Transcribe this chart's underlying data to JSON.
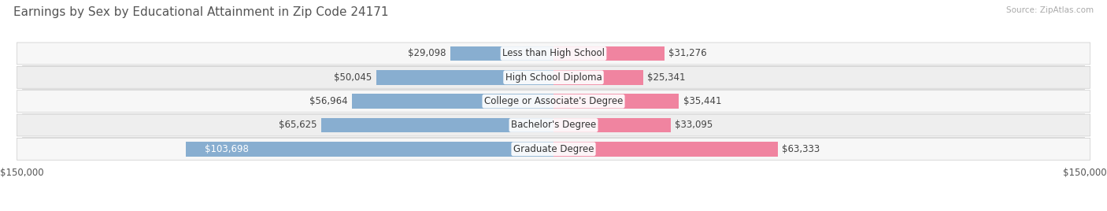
{
  "title": "Earnings by Sex by Educational Attainment in Zip Code 24171",
  "source": "Source: ZipAtlas.com",
  "categories": [
    "Less than High School",
    "High School Diploma",
    "College or Associate's Degree",
    "Bachelor's Degree",
    "Graduate Degree"
  ],
  "male_values": [
    29098,
    50045,
    56964,
    65625,
    103698
  ],
  "female_values": [
    31276,
    25341,
    35441,
    33095,
    63333
  ],
  "male_color": "#88aed0",
  "female_color": "#f084a0",
  "bar_height": 0.62,
  "x_max": 150000,
  "background_color": "#ffffff",
  "row_colors_light": "#f2f2f2",
  "row_colors_dark": "#e8e8e8",
  "title_fontsize": 11,
  "label_fontsize": 8.5,
  "value_fontsize": 8.5,
  "tick_fontsize": 8.5,
  "legend_fontsize": 9,
  "source_fontsize": 7.5
}
